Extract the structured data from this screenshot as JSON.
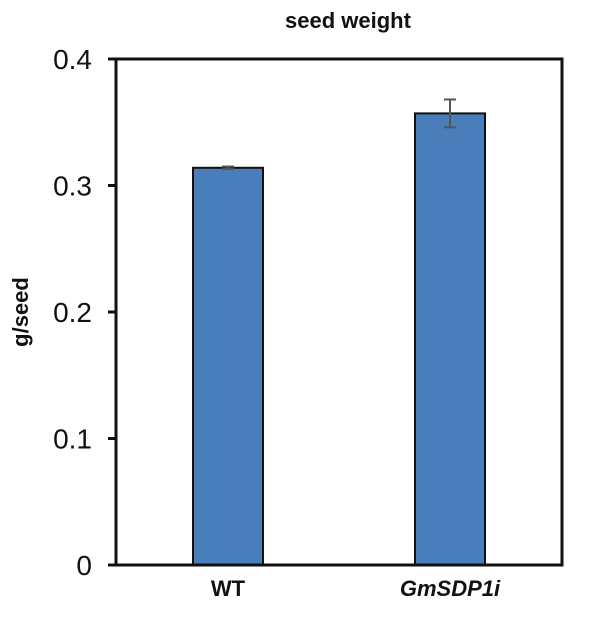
{
  "chart_data": {
    "type": "bar",
    "title": "seed weight",
    "xlabel": "",
    "ylabel": "g/seed",
    "ylim": [
      0,
      0.4
    ],
    "yticks": [
      "0",
      "0.1",
      "0.2",
      "0.3",
      "0.4"
    ],
    "ytick_values": [
      0,
      0.1,
      0.2,
      0.3,
      0.4
    ],
    "categories": [
      "WT",
      "GmSDP1i"
    ],
    "category_italic": [
      false,
      true
    ],
    "values": [
      0.314,
      0.357
    ],
    "errors": [
      0.001,
      0.011
    ],
    "bar_color": "#4a7ebb",
    "grid": false,
    "legend": "none"
  }
}
